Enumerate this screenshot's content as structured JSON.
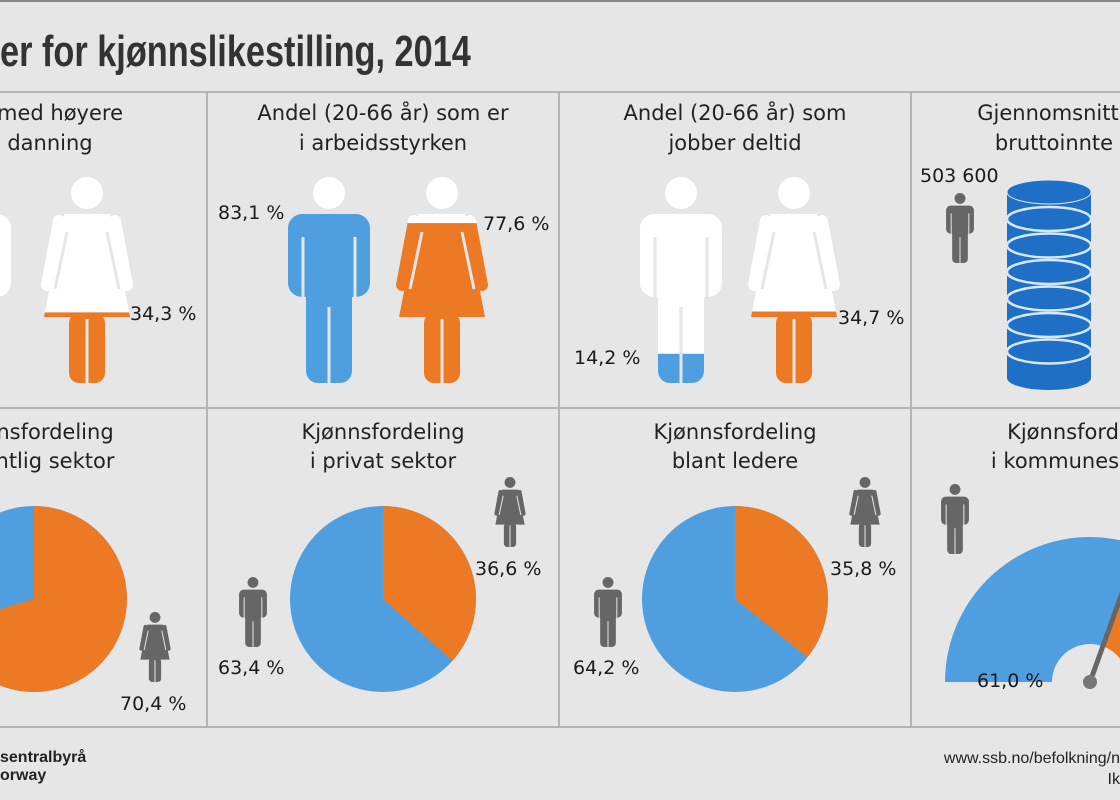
{
  "title": "er for kjønnslikestilling, 2014",
  "colors": {
    "male": "#4f9fe0",
    "female": "#ec7a24",
    "icon": "#666666",
    "coins": "#1f6fc6",
    "background": "#e6e6e6",
    "grid": "#b4b4b4"
  },
  "panels": {
    "education": {
      "title1": "med høyere",
      "title2": "danning",
      "female_value": 34.3,
      "female_label": "34,3 %"
    },
    "labour_force": {
      "title1": "Andel (20-66 år) som er",
      "title2": "i arbeidsstyrken",
      "male_value": 83.1,
      "male_label": "83,1 %",
      "female_value": 77.6,
      "female_label": "77,6 %"
    },
    "part_time": {
      "title1": "Andel (20-66 år) som",
      "title2": "jobber deltid",
      "male_value": 14.2,
      "male_label": "14,2 %",
      "female_value": 34.7,
      "female_label": "34,7 %"
    },
    "income": {
      "title1": "Gjennomsnitt",
      "title2": "bruttoinnte",
      "male_label": "503 600",
      "icon": "coin-stack-icon"
    },
    "public_sector": {
      "title1": "nsfordeling",
      "title2": "ntlig sektor",
      "female_value": 70.4,
      "female_label": "70,4 %"
    },
    "private_sector": {
      "title1": "Kjønnsfordeling",
      "title2": "i privat sektor",
      "male_value": 63.4,
      "male_label": "63,4 %",
      "female_value": 36.6,
      "female_label": "36,6 %"
    },
    "leaders": {
      "title1": "Kjønnsfordeling",
      "title2": "blant ledere",
      "male_value": 64.2,
      "male_label": "64,2 %",
      "female_value": 35.8,
      "female_label": "35,8 %"
    },
    "municipal": {
      "title1": "Kjønnsford",
      "title2": "i kommunes",
      "male_value": 61.0,
      "male_label": "61,0 %"
    }
  },
  "chart_data": [
    {
      "type": "pictogram",
      "title": "med høyere danning",
      "series": [
        {
          "name": "female",
          "value": 34.3
        }
      ]
    },
    {
      "type": "pictogram",
      "title": "Andel (20-66 år) som er i arbeidsstyrken",
      "series": [
        {
          "name": "male",
          "value": 83.1
        },
        {
          "name": "female",
          "value": 77.6
        }
      ]
    },
    {
      "type": "pictogram",
      "title": "Andel (20-66 år) som jobber deltid",
      "series": [
        {
          "name": "male",
          "value": 14.2
        },
        {
          "name": "female",
          "value": 34.7
        }
      ]
    },
    {
      "type": "pictogram",
      "title": "Gjennomsnitt bruttoinnte",
      "series": [
        {
          "name": "male",
          "value": 503600
        }
      ]
    },
    {
      "type": "pie",
      "title": "nsfordeling ntlig sektor",
      "categories": [
        "male",
        "female"
      ],
      "values": [
        29.6,
        70.4
      ]
    },
    {
      "type": "pie",
      "title": "Kjønnsfordeling i privat sektor",
      "categories": [
        "male",
        "female"
      ],
      "values": [
        63.4,
        36.6
      ]
    },
    {
      "type": "pie",
      "title": "Kjønnsfordeling blant ledere",
      "categories": [
        "male",
        "female"
      ],
      "values": [
        64.2,
        35.8
      ]
    },
    {
      "type": "gauge",
      "title": "Kjønnsfordeling i kommunes",
      "categories": [
        "male",
        "female"
      ],
      "values": [
        61.0,
        39.0
      ]
    }
  ],
  "footer": {
    "org1": "sentralbyrå",
    "org2": "orway",
    "url": "www.ssb.no/befolkning/n",
    "credit": "Ik"
  }
}
